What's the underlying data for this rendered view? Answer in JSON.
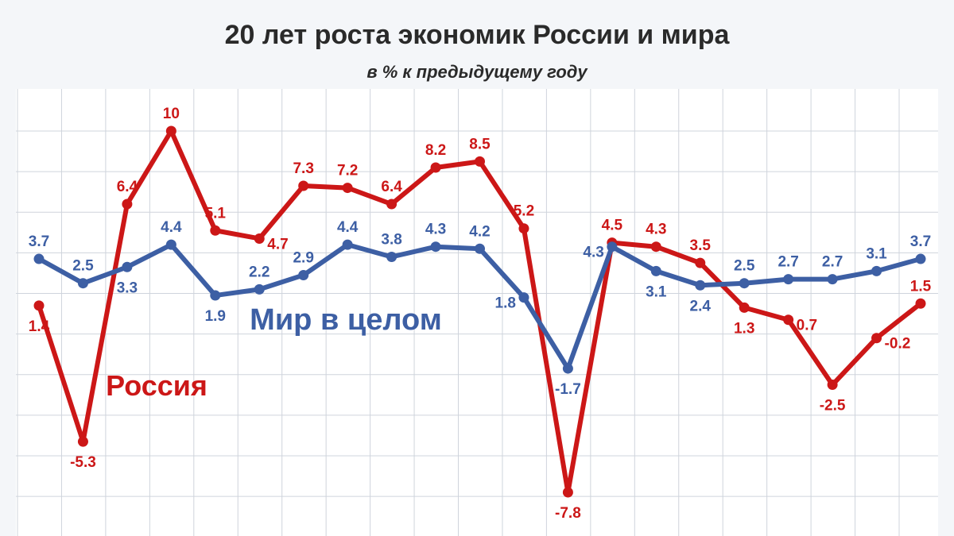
{
  "chart_data": {
    "type": "line",
    "title": "20 лет роста экономик России и мира",
    "subtitle": "в % к предыдущему году",
    "xlabel": "",
    "ylabel": "",
    "x": [
      1,
      2,
      3,
      4,
      5,
      6,
      7,
      8,
      9,
      10,
      11,
      12,
      13,
      14,
      15,
      16,
      17,
      18,
      19,
      20,
      21
    ],
    "ylim": [
      -8.5,
      11
    ],
    "grid": true,
    "legend": "none",
    "colors": {
      "world": "#3d5fa4",
      "russia": "#cc1717",
      "grid": "#cfd4dc",
      "background": "#f4f6f9"
    },
    "series": [
      {
        "name": "Мир в целом",
        "key": "world",
        "values": [
          3.7,
          2.5,
          3.3,
          4.4,
          1.9,
          2.2,
          2.9,
          4.4,
          3.8,
          4.3,
          4.2,
          1.8,
          -1.7,
          4.3,
          3.1,
          2.4,
          2.5,
          2.7,
          2.7,
          3.1,
          3.7
        ],
        "labels": [
          "3.7",
          "2.5",
          "3.3",
          "4.4",
          "1.9",
          "2.2",
          "2.9",
          "4.4",
          "3.8",
          "4.3",
          "4.2",
          "1.8",
          "-1.7",
          "4.3",
          "3.1",
          "2.4",
          "2.5",
          "2.7",
          "2.7",
          "3.1",
          "3.7"
        ]
      },
      {
        "name": "Россия",
        "key": "russia",
        "values": [
          1.4,
          -5.3,
          6.4,
          10,
          5.1,
          4.7,
          7.3,
          7.2,
          6.4,
          8.2,
          8.5,
          5.2,
          -7.8,
          4.5,
          4.3,
          3.5,
          1.3,
          0.7,
          -2.5,
          -0.2,
          1.5
        ],
        "labels": [
          "1.4",
          "-5.3",
          "6.4",
          "10",
          "5.1",
          "4.7",
          "7.3",
          "7.2",
          "6.4",
          "8.2",
          "8.5",
          "5.2",
          "-7.8",
          "4.5",
          "4.3",
          "3.5",
          "1.3",
          "0.7",
          "-2.5",
          "-0.2",
          "1.5"
        ]
      }
    ]
  }
}
